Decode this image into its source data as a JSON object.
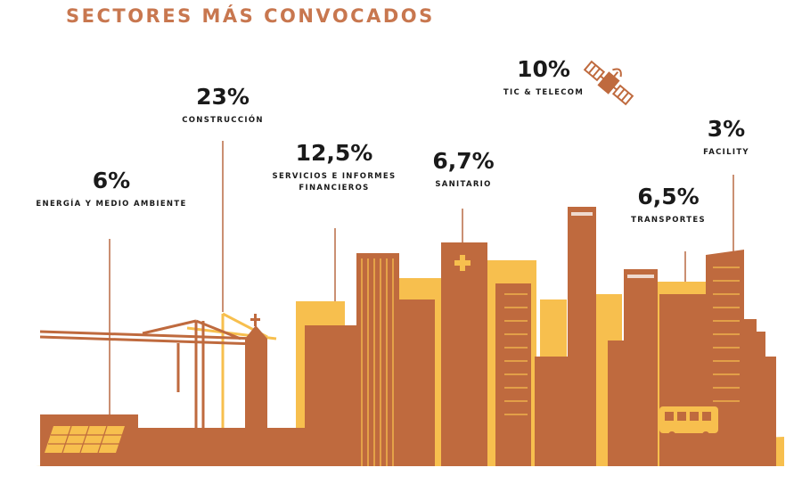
{
  "title": "SECTORES MÁS CONVOCADOS",
  "colors": {
    "brown": "#bf6a3e",
    "yellow": "#f7bf4e",
    "title": "#c8774f",
    "line": "#b86a44"
  },
  "sectors": [
    {
      "pct": "6%",
      "label": "ENERGÍA Y MEDIO AMBIENTE",
      "value": 6
    },
    {
      "pct": "23%",
      "label": "CONSTRUCCIÓN",
      "value": 23
    },
    {
      "pct": "12,5%",
      "label": "SERVICIOS E INFORMES",
      "label2": "FINANCIEROS",
      "value": 12.5
    },
    {
      "pct": "6,7%",
      "label": "SANITARIO",
      "value": 6.7
    },
    {
      "pct": "10%",
      "label": "TIC & TELECOM",
      "value": 10
    },
    {
      "pct": "6,5%",
      "label": "TRANSPORTES",
      "value": 6.5
    },
    {
      "pct": "3%",
      "label": "FACILITY",
      "value": 3
    }
  ],
  "icons": {
    "telecom": "satellite-icon",
    "health": "medical-cross-icon"
  }
}
